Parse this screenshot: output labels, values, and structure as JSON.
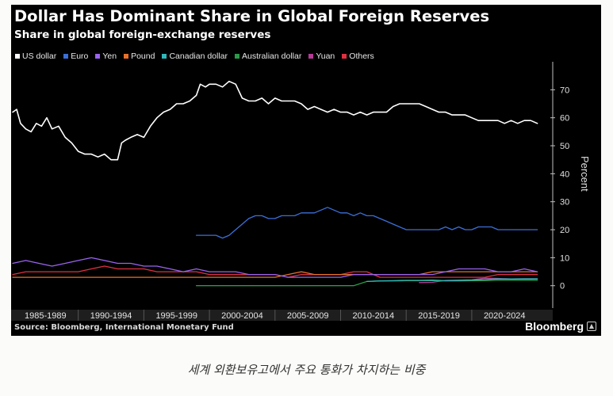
{
  "caption": "세계 외환보유고에서 주요 통화가 차지하는 비중",
  "chart_data": {
    "type": "line",
    "title": "Dollar Has Dominant Share in Global Foreign Reserves",
    "subtitle": "Share in global foreign-exchange reserves",
    "ylabel": "Percent",
    "ylim": [
      -8,
      80
    ],
    "yticks": [
      0,
      10,
      20,
      30,
      40,
      50,
      60,
      70
    ],
    "xlim": [
      1985.0,
      2025.75
    ],
    "grid": false,
    "legend_position": "top-left",
    "x_categories": [
      "1985-1989",
      "1990-1994",
      "1995-1999",
      "2000-2004",
      "2005-2009",
      "2010-2014",
      "2015-2019",
      "2020-2024"
    ],
    "source": "Source: Bloomberg, International Monetary Fund",
    "brand": "Bloomberg",
    "series": [
      {
        "name": "US dollar",
        "color": "#ffffff",
        "x": [
          1985,
          1985.3,
          1985.6,
          1986,
          1986.4,
          1986.8,
          1987.2,
          1987.6,
          1988,
          1988.5,
          1989,
          1989.5,
          1990,
          1990.5,
          1991,
          1991.5,
          1992,
          1992.5,
          1993,
          1993.3,
          1993.6,
          1994,
          1994.5,
          1995,
          1995.5,
          1996,
          1996.5,
          1997,
          1997.5,
          1998,
          1998.5,
          1999,
          1999.3,
          1999.7,
          2000,
          2000.5,
          2001,
          2001.5,
          2002,
          2002.5,
          2003,
          2003.5,
          2004,
          2004.5,
          2005,
          2005.5,
          2006,
          2006.5,
          2007,
          2007.5,
          2008,
          2008.5,
          2009,
          2009.5,
          2010,
          2010.5,
          2011,
          2011.5,
          2012,
          2012.5,
          2013,
          2013.5,
          2014,
          2014.5,
          2015,
          2015.5,
          2016,
          2016.5,
          2017,
          2017.5,
          2018,
          2018.5,
          2019,
          2019.5,
          2020,
          2020.5,
          2021,
          2021.5,
          2022,
          2022.5,
          2023,
          2023.5,
          2024,
          2024.5,
          2025
        ],
        "values": [
          62,
          63,
          58,
          56,
          55,
          58,
          57,
          60,
          56,
          57,
          53,
          51,
          48,
          47,
          47,
          46,
          47,
          45,
          45,
          51,
          52,
          53,
          54,
          53,
          57,
          60,
          62,
          63,
          65,
          65,
          66,
          68,
          72,
          71,
          72,
          72,
          71,
          73,
          72,
          67,
          66,
          66,
          67,
          65,
          67,
          66,
          66,
          66,
          65,
          63,
          64,
          63,
          62,
          63,
          62,
          62,
          61,
          62,
          61,
          62,
          62,
          62,
          64,
          65,
          65,
          65,
          65,
          64,
          63,
          62,
          62,
          61,
          61,
          61,
          60,
          59,
          59,
          59,
          59,
          58,
          59,
          58,
          59,
          59,
          58
        ]
      },
      {
        "name": "Euro",
        "color": "#3b6fd8",
        "x": [
          1999,
          1999.5,
          2000,
          2000.5,
          2001,
          2001.5,
          2002,
          2002.5,
          2003,
          2003.5,
          2004,
          2004.5,
          2005,
          2005.5,
          2006,
          2006.5,
          2007,
          2007.5,
          2008,
          2008.5,
          2009,
          2009.5,
          2010,
          2010.5,
          2011,
          2011.5,
          2012,
          2012.5,
          2013,
          2013.5,
          2014,
          2014.5,
          2015,
          2015.5,
          2016,
          2016.5,
          2017,
          2017.5,
          2018,
          2018.5,
          2019,
          2019.5,
          2020,
          2020.5,
          2021,
          2021.5,
          2022,
          2022.5,
          2023,
          2023.5,
          2024,
          2024.5,
          2025
        ],
        "values": [
          18,
          18,
          18,
          18,
          17,
          18,
          20,
          22,
          24,
          25,
          25,
          24,
          24,
          25,
          25,
          25,
          26,
          26,
          26,
          27,
          28,
          27,
          26,
          26,
          25,
          26,
          25,
          25,
          24,
          23,
          22,
          21,
          20,
          20,
          20,
          20,
          20,
          20,
          21,
          20,
          21,
          20,
          20,
          21,
          21,
          21,
          20,
          20,
          20,
          20,
          20,
          20,
          20
        ]
      },
      {
        "name": "Yen",
        "color": "#9a63f0",
        "x": [
          1985,
          1986,
          1987,
          1988,
          1989,
          1990,
          1991,
          1992,
          1993,
          1994,
          1995,
          1996,
          1997,
          1998,
          1999,
          2000,
          2001,
          2002,
          2003,
          2004,
          2005,
          2006,
          2007,
          2008,
          2009,
          2010,
          2011,
          2012,
          2013,
          2014,
          2015,
          2016,
          2017,
          2018,
          2019,
          2020,
          2021,
          2022,
          2023,
          2024,
          2025
        ],
        "values": [
          8,
          9,
          8,
          7,
          8,
          9,
          10,
          9,
          8,
          8,
          7,
          7,
          6,
          5,
          6,
          5,
          5,
          5,
          4,
          4,
          4,
          3,
          3,
          3,
          3,
          3,
          4,
          4,
          4,
          4,
          4,
          4,
          4,
          5,
          6,
          6,
          6,
          5,
          5,
          6,
          5
        ]
      },
      {
        "name": "Pound",
        "color": "#e8702a",
        "x": [
          1985,
          1986,
          1987,
          1988,
          1989,
          1990,
          1991,
          1992,
          1993,
          1994,
          1995,
          1996,
          1997,
          1998,
          1999,
          2000,
          2001,
          2002,
          2003,
          2004,
          2005,
          2006,
          2007,
          2008,
          2009,
          2010,
          2011,
          2012,
          2013,
          2014,
          2015,
          2016,
          2017,
          2018,
          2019,
          2020,
          2021,
          2022,
          2023,
          2024,
          2025
        ],
        "values": [
          3,
          3,
          3,
          3,
          3,
          3,
          3,
          3,
          3,
          3,
          3,
          3,
          3,
          3,
          3,
          3,
          3,
          3,
          3,
          3,
          3,
          4,
          5,
          4,
          4,
          4,
          4,
          4,
          4,
          4,
          4,
          4,
          5,
          5,
          5,
          5,
          5,
          5,
          5,
          5,
          5
        ]
      },
      {
        "name": "Canadian dollar",
        "color": "#2fb8b8",
        "x": [
          2012,
          2013,
          2014,
          2015,
          2016,
          2017,
          2018,
          2019,
          2020,
          2021,
          2022,
          2023,
          2024,
          2025
        ],
        "values": [
          1.5,
          1.7,
          1.8,
          1.9,
          1.9,
          2,
          1.8,
          1.9,
          2,
          2.2,
          2.4,
          2.4,
          2.5,
          2.5
        ]
      },
      {
        "name": "Australian dollar",
        "color": "#2a9a48",
        "x": [
          1999,
          2000,
          2005,
          2010,
          2011,
          2012,
          2013,
          2014,
          2015,
          2016,
          2017,
          2018,
          2019,
          2020,
          2021,
          2022,
          2023,
          2024,
          2025
        ],
        "values": [
          0,
          0,
          0,
          0,
          0,
          1.5,
          1.7,
          1.7,
          1.8,
          1.8,
          1.8,
          1.7,
          1.7,
          1.8,
          1.8,
          2,
          2,
          2,
          2
        ]
      },
      {
        "name": "Yuan",
        "color": "#b43a96",
        "x": [
          2016,
          2017,
          2018,
          2019,
          2020,
          2021,
          2022,
          2023,
          2024,
          2025
        ],
        "values": [
          1.1,
          1.2,
          1.9,
          2,
          2.1,
          2.7,
          2.6,
          2.4,
          2.2,
          2.1
        ]
      },
      {
        "name": "Others",
        "color": "#e03040",
        "x": [
          1985,
          1986,
          1987,
          1988,
          1989,
          1990,
          1991,
          1992,
          1993,
          1994,
          1995,
          1996,
          1997,
          1998,
          1999,
          2000,
          2001,
          2002,
          2003,
          2004,
          2005,
          2006,
          2007,
          2008,
          2009,
          2010,
          2011,
          2012,
          2013,
          2014,
          2015,
          2016,
          2017,
          2018,
          2019,
          2020,
          2021,
          2022,
          2023,
          2024,
          2025
        ],
        "values": [
          4,
          5,
          5,
          5,
          5,
          5,
          6,
          7,
          6,
          6,
          6,
          5,
          5,
          5,
          5,
          4,
          4,
          4,
          4,
          4,
          4,
          3,
          4,
          4,
          4,
          4,
          5,
          5,
          3,
          3,
          3,
          3,
          3,
          3,
          3,
          3,
          3,
          4,
          4,
          4,
          4
        ]
      }
    ]
  }
}
